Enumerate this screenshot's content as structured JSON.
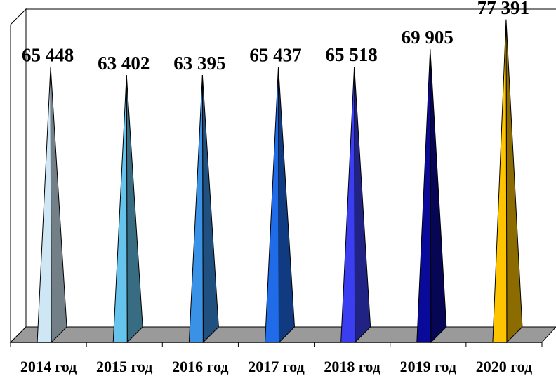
{
  "chart_data": {
    "type": "bar",
    "style": "3d-pyramid",
    "categories": [
      "2014 год",
      "2015 год",
      "2016 год",
      "2017 год",
      "2018 год",
      "2019 год",
      "2020 год"
    ],
    "values": [
      65448,
      63402,
      63395,
      65437,
      65518,
      69905,
      77391
    ],
    "value_labels": [
      "65 448",
      "63 402",
      "63 395",
      "65 437",
      "65 518",
      "69 905",
      "77 391"
    ],
    "colors": [
      "#cfe6f5",
      "#66c4ec",
      "#3a92e6",
      "#1f6be8",
      "#3a3ef0",
      "#0a0a9a",
      "#ffc400"
    ],
    "ylim": [
      0,
      80000
    ],
    "grid": false,
    "legend": "none",
    "title": "",
    "xlabel": "",
    "ylabel": ""
  }
}
